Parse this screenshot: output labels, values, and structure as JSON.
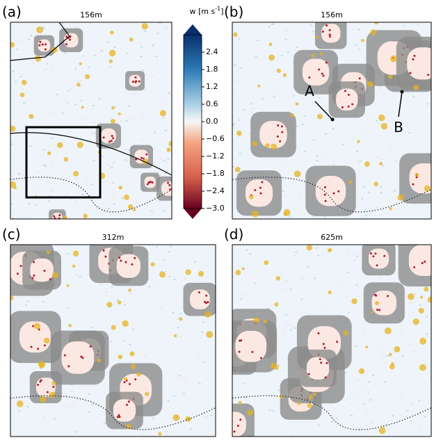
{
  "panels": [
    {
      "label": "(a)",
      "title": "156m"
    },
    {
      "label": "(b)",
      "title": "156m",
      "annotations": [
        "A",
        "B"
      ]
    },
    {
      "label": "(c)",
      "title": "312m"
    },
    {
      "label": "(d)",
      "title": "625m"
    }
  ],
  "colorbar": {
    "label": {
      "text": "w [m s",
      "sup": "-1",
      "end": "]"
    },
    "lim": [
      -3.0,
      3.0
    ],
    "ticks": [
      2.4,
      1.8,
      1.2,
      {
        "value": 0.6,
        "label": "0.6"
      },
      {
        "value": 0,
        "label": "0.0"
      },
      {
        "value": -0.6,
        "label": "−0.6"
      },
      {
        "value": -1.2,
        "label": "−1.2"
      },
      {
        "value": -1.8,
        "label": "−1.8"
      },
      {
        "value": -2.4,
        "label": "−2.4"
      },
      {
        "value": -3.0,
        "label": "−3.0"
      }
    ]
  }
}
